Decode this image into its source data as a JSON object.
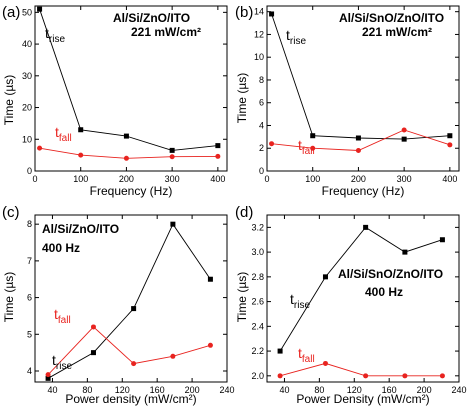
{
  "colors": {
    "black_series": "#000000",
    "red_series": "#e8231f",
    "axis": "#000000"
  },
  "chart_data": [
    {
      "panel_label": "(a)",
      "type": "line",
      "annotation_lines": [
        "Al/Si/ZnO/ITO",
        "221 mW/cm²"
      ],
      "xlabel": "Frequency (Hz)",
      "ylabel": "Time (µs)",
      "xlim": [
        0,
        420
      ],
      "ylim": [
        0,
        52
      ],
      "xticks": [
        0,
        100,
        200,
        300,
        400
      ],
      "xtick_labels": [
        "0",
        "100",
        "200",
        "300",
        "400"
      ],
      "yticks": [
        0,
        10,
        20,
        30,
        40,
        50
      ],
      "ytick_labels": [
        "0",
        "10",
        "20",
        "30",
        "40",
        "50"
      ],
      "series": [
        {
          "label_main": "t",
          "label_sub": "rise",
          "color": "#000000",
          "marker": "square",
          "x": [
            10,
            100,
            200,
            300,
            400
          ],
          "y": [
            51,
            13,
            11,
            6.5,
            8
          ]
        },
        {
          "label_main": "t",
          "label_sub": "fall",
          "color": "#e8231f",
          "marker": "circle",
          "x": [
            10,
            100,
            200,
            300,
            400
          ],
          "y": [
            7.2,
            5,
            4,
            4.5,
            4.6
          ]
        }
      ]
    },
    {
      "panel_label": "(b)",
      "type": "line",
      "annotation_lines": [
        "Al/Si/SnO/ZnO/ITO",
        "221 mW/cm²"
      ],
      "xlabel": "Frequency (Hz)",
      "ylabel": "Time (µs)",
      "xlim": [
        0,
        420
      ],
      "ylim": [
        0,
        14.5
      ],
      "xticks": [
        0,
        100,
        200,
        300,
        400
      ],
      "xtick_labels": [
        "0",
        "100",
        "200",
        "300",
        "400"
      ],
      "yticks": [
        0,
        2,
        4,
        6,
        8,
        10,
        12,
        14
      ],
      "ytick_labels": [
        "0",
        "2",
        "4",
        "6",
        "8",
        "10",
        "12",
        "14"
      ],
      "series": [
        {
          "label_main": "t",
          "label_sub": "rise",
          "color": "#000000",
          "marker": "square",
          "x": [
            10,
            100,
            200,
            300,
            400
          ],
          "y": [
            13.8,
            3.1,
            2.9,
            2.8,
            3.1
          ]
        },
        {
          "label_main": "t",
          "label_sub": "fall",
          "color": "#e8231f",
          "marker": "circle",
          "x": [
            10,
            100,
            200,
            300,
            400
          ],
          "y": [
            2.4,
            2.0,
            1.8,
            3.6,
            2.3
          ]
        }
      ]
    },
    {
      "panel_label": "(c)",
      "type": "line",
      "annotation_lines": [
        "Al/Si/ZnO/ITO",
        "400 Hz"
      ],
      "xlabel": "Power density (mW/cm²)",
      "ylabel": "Time (µs)",
      "xlim": [
        20,
        240
      ],
      "ylim": [
        3.7,
        8.25
      ],
      "xticks": [
        40,
        80,
        120,
        160,
        200,
        240
      ],
      "xtick_labels": [
        "40",
        "80",
        "120",
        "160",
        "200",
        "240"
      ],
      "yticks": [
        4,
        5,
        6,
        7,
        8
      ],
      "ytick_labels": [
        "4",
        "5",
        "6",
        "7",
        "8"
      ],
      "series": [
        {
          "label_main": "t",
          "label_sub": "rise",
          "color": "#000000",
          "marker": "square",
          "x": [
            35,
            87,
            133,
            178,
            221
          ],
          "y": [
            3.8,
            4.5,
            5.7,
            8.0,
            6.5
          ]
        },
        {
          "label_main": "t",
          "label_sub": "fall",
          "color": "#e8231f",
          "marker": "circle",
          "x": [
            35,
            87,
            133,
            178,
            221
          ],
          "y": [
            3.9,
            5.2,
            4.2,
            4.4,
            4.7
          ]
        }
      ]
    },
    {
      "panel_label": "(d)",
      "type": "line",
      "annotation_lines": [
        "Al/Si/SnO/ZnO/ITO",
        "400 Hz"
      ],
      "xlabel": "Power Density (mW/cm²)",
      "ylabel": "Time (µs)",
      "xlim": [
        20,
        240
      ],
      "ylim": [
        1.95,
        3.3
      ],
      "xticks": [
        40,
        80,
        120,
        160,
        200,
        240
      ],
      "xtick_labels": [
        "40",
        "80",
        "120",
        "160",
        "200",
        "240"
      ],
      "yticks": [
        2.0,
        2.2,
        2.4,
        2.6,
        2.8,
        3.0,
        3.2
      ],
      "ytick_labels": [
        "2.0",
        "2.2",
        "2.4",
        "2.6",
        "2.8",
        "3.0",
        "3.2"
      ],
      "series": [
        {
          "label_main": "t",
          "label_sub": "rise",
          "color": "#000000",
          "marker": "square",
          "x": [
            35,
            87,
            133,
            178,
            221
          ],
          "y": [
            2.2,
            2.8,
            3.2,
            3.0,
            3.1
          ]
        },
        {
          "label_main": "t",
          "label_sub": "fall",
          "color": "#e8231f",
          "marker": "circle",
          "x": [
            35,
            87,
            133,
            178,
            221
          ],
          "y": [
            2.0,
            2.1,
            2.0,
            2.0,
            2.0
          ]
        }
      ]
    }
  ]
}
